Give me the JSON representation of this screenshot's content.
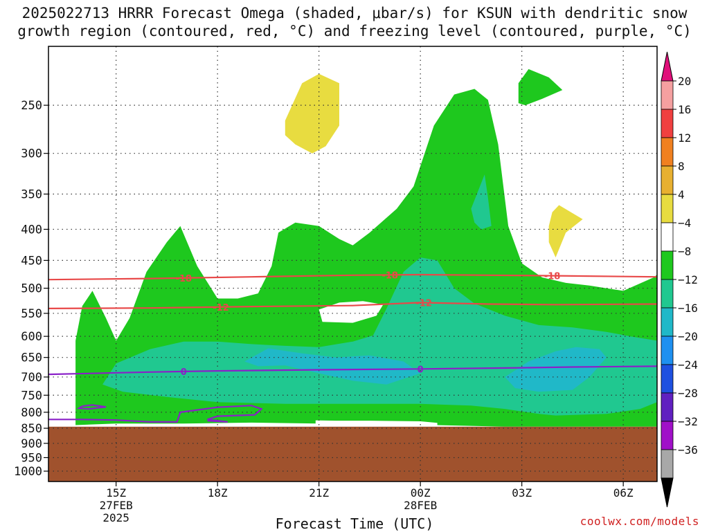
{
  "title_line1": "2025022713 HRRR Forecast Omega (shaded, μbar/s) for KSUN with dendritic snow",
  "title_line2": "growth region (contoured, red, °C) and freezing level (contoured, purple, °C)",
  "xlabel": "Forecast Time (UTC)",
  "credit": "coolwx.com/models",
  "chart_data": {
    "type": "time-height cross section",
    "x_ticks": [
      {
        "label": "15Z",
        "hour": 15,
        "date": "27FEB",
        "year": "2025"
      },
      {
        "label": "18Z",
        "hour": 18
      },
      {
        "label": "21Z",
        "hour": 21
      },
      {
        "label": "00Z",
        "hour": 24,
        "date": "28FEB"
      },
      {
        "label": "03Z",
        "hour": 27
      },
      {
        "label": "06Z",
        "hour": 30
      }
    ],
    "xlim_hours": [
      13,
      31
    ],
    "y_ticks": [
      250,
      300,
      350,
      400,
      450,
      500,
      550,
      600,
      650,
      700,
      750,
      800,
      850,
      900,
      950,
      1000
    ],
    "ylim_mb": [
      200,
      1040
    ],
    "y_scale": "log-pressure",
    "ground_pressure_mb": 845,
    "grid": true,
    "colorbar": {
      "labels": [
        "20",
        "16",
        "12",
        "8",
        "4",
        "−4",
        "−8",
        "−12",
        "−16",
        "−20",
        "−24",
        "−28",
        "−32",
        "−36"
      ],
      "colors": [
        "#f5a0a0",
        "#f04040",
        "#f08020",
        "#e8b030",
        "#e8dc40",
        "#ffffff",
        "#1ec81e",
        "#20c890",
        "#20b8c8",
        "#1e90f0",
        "#1e50e0",
        "#6020c0",
        "#a010c8",
        "#a8a8a8"
      ],
      "top_arrow_color": "#e0107a",
      "bottom_arrow_color": "#000000"
    },
    "omega_colors": {
      "-4": "#1ec81e",
      "-8": "#20c890",
      "-12": "#20b8c8",
      "4": "#e8dc40"
    },
    "ground_color": "#a0522d",
    "contours": [
      {
        "name": "dgz-minus18",
        "value": "-18",
        "color": "#e84848",
        "points": [
          [
            13.0,
            484
          ],
          [
            16.0,
            482
          ],
          [
            19.0,
            479
          ],
          [
            22.0,
            476
          ],
          [
            24.0,
            475
          ],
          [
            26.0,
            476
          ],
          [
            28.0,
            477
          ],
          [
            31.0,
            479
          ]
        ],
        "label_hours": [
          17.0,
          23.1,
          27.9
        ]
      },
      {
        "name": "dgz-minus12",
        "value": "-12",
        "color": "#e84848",
        "points": [
          [
            13.0,
            540
          ],
          [
            16.0,
            539
          ],
          [
            19.0,
            536
          ],
          [
            22.0,
            534
          ],
          [
            24.0,
            528
          ],
          [
            26.0,
            531
          ],
          [
            28.0,
            532
          ],
          [
            31.0,
            531
          ]
        ],
        "label_hours": [
          18.1,
          24.1
        ]
      },
      {
        "name": "freezing-level",
        "value": "0",
        "color": "#8a20c8",
        "points": [
          [
            13.0,
            693
          ],
          [
            16.0,
            687
          ],
          [
            18.0,
            684
          ],
          [
            21.0,
            681
          ],
          [
            24.0,
            679
          ],
          [
            27.0,
            676
          ],
          [
            28.5,
            674
          ],
          [
            31.0,
            672
          ]
        ],
        "label_hours": [
          17.0,
          24.0
        ]
      }
    ]
  }
}
